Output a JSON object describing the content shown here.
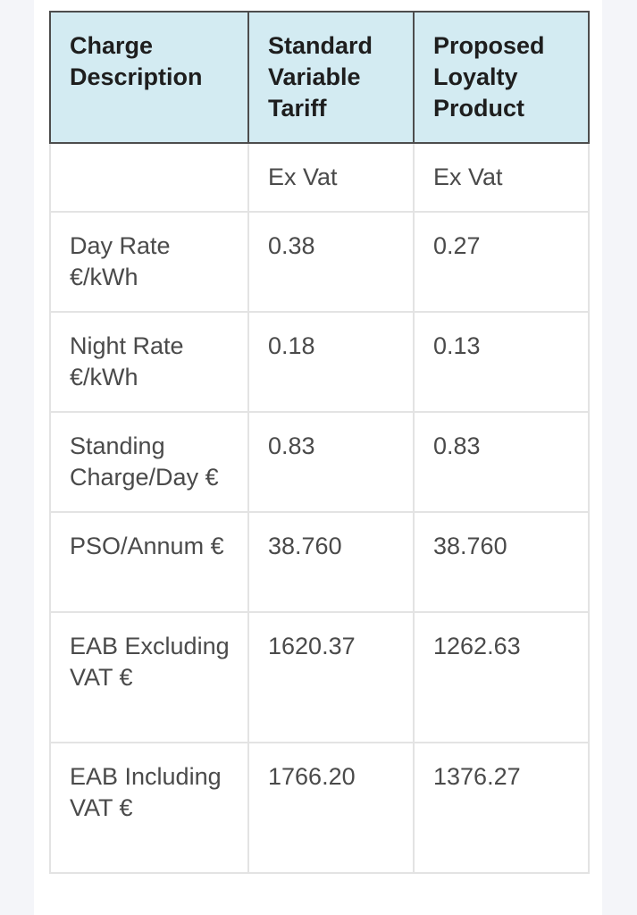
{
  "table": {
    "headers": [
      "Charge Description",
      "Standard Variable Tariff",
      "Proposed Loyalty Product"
    ],
    "rows": [
      {
        "description": "",
        "standard": "Ex Vat",
        "proposed": "Ex Vat"
      },
      {
        "description": "Day Rate €/kWh",
        "standard": "0.38",
        "proposed": "0.27"
      },
      {
        "description": "Night Rate €/kWh",
        "standard": "0.18",
        "proposed": "0.13"
      },
      {
        "description": "Standing Charge/Day €",
        "standard": "0.83",
        "proposed": "0.83"
      },
      {
        "description": "PSO/Annum €",
        "standard": "38.760",
        "proposed": "38.760"
      },
      {
        "description": "EAB Excluding VAT €",
        "standard": "1620.37",
        "proposed": "1262.63"
      },
      {
        "description": "EAB Including VAT €",
        "standard": "1766.20",
        "proposed": "1376.27"
      }
    ]
  },
  "colors": {
    "header_background": "#d3ebf2",
    "header_border": "#4d4d4d",
    "cell_border": "#e3e3e3",
    "page_background": "#f4f5f9"
  }
}
